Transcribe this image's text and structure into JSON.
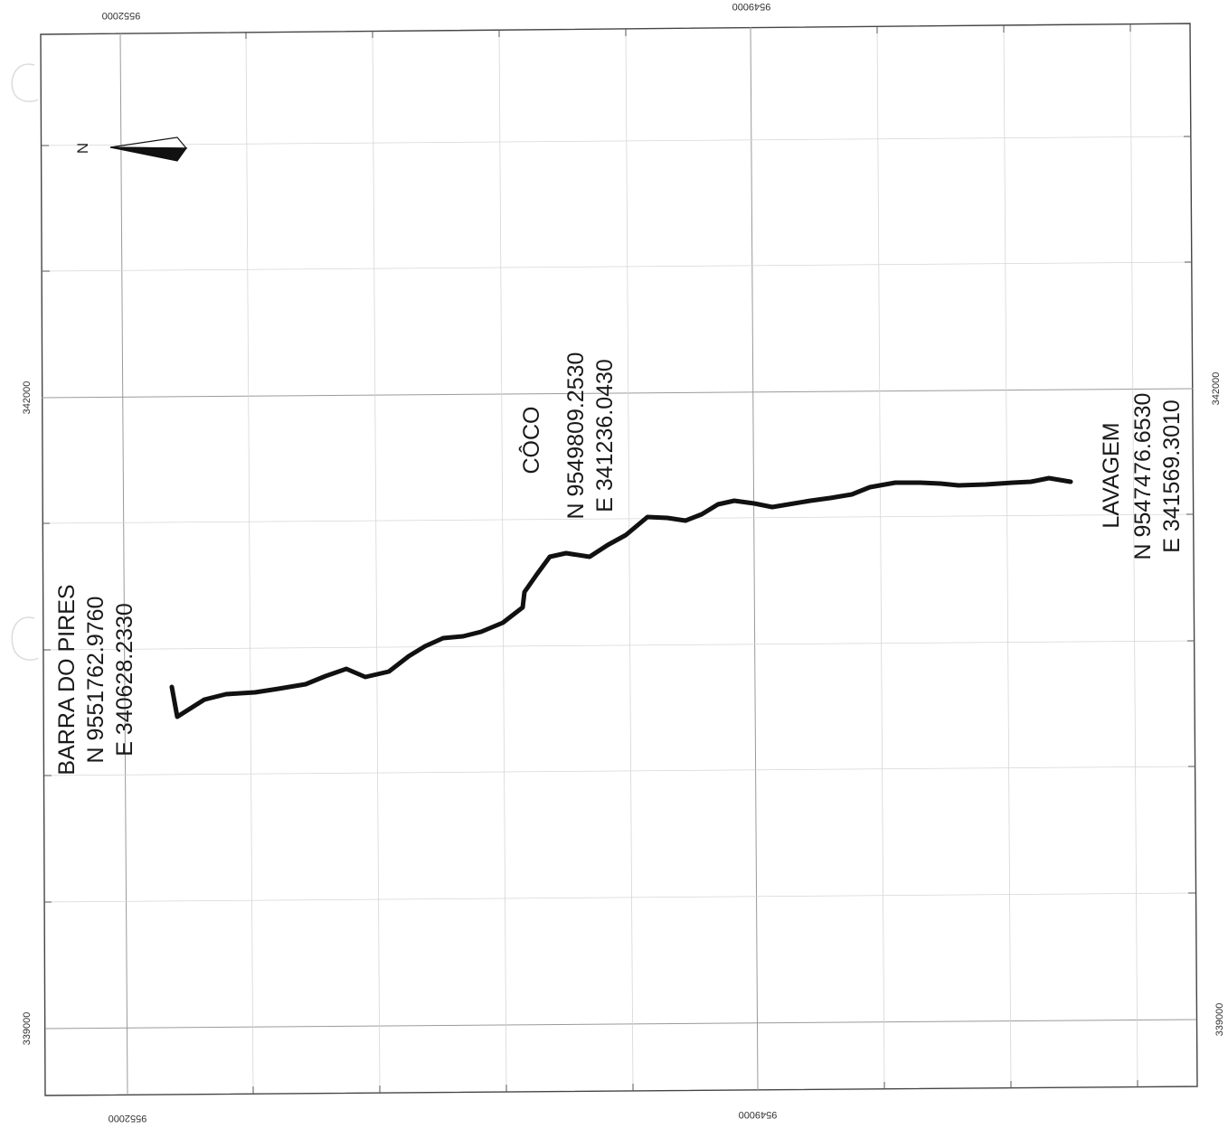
{
  "map": {
    "grid": {
      "northing_labels": [
        "9552000",
        "9549000"
      ],
      "easting_labels": [
        "342000",
        "339000"
      ]
    },
    "north_arrow": {
      "letter": "N"
    },
    "route": {
      "stroke_color": "#111111",
      "waypoints": [
        {
          "name": "BARRA DO PIRES",
          "northing": "N 9551762.9760",
          "easting": "E 340628.2330"
        },
        {
          "name": "CÔCO",
          "northing": "N 9549809.2530",
          "easting": "E 341236.0430"
        },
        {
          "name": "LAVAGEM",
          "northing": "N 9547476.6530",
          "easting": "E 341569.3010"
        }
      ]
    },
    "colors": {
      "frame": "#444444",
      "grid_line": "#9a9a9a",
      "north_arrow_fill": "#111111"
    }
  }
}
